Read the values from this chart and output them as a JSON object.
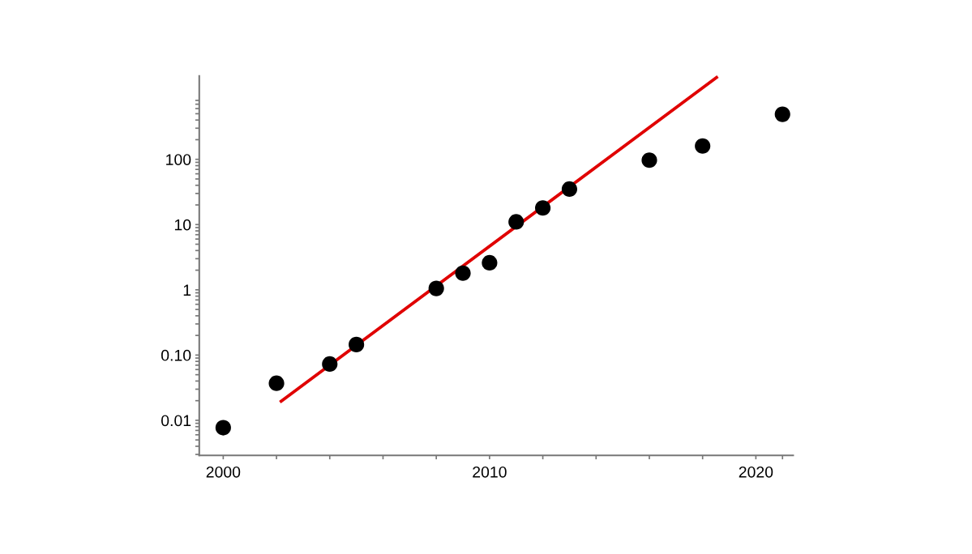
{
  "chart_data": {
    "type": "scatter",
    "log": "y",
    "grid": false,
    "xlim": [
      1999.1,
      2021.4
    ],
    "ylim": [
      0.0029,
      1900
    ],
    "xticks": [
      2000,
      {
        "value": 2002,
        "label": null
      },
      {
        "value": 2004,
        "label": null
      },
      {
        "value": 2006,
        "label": null
      },
      {
        "value": 2008,
        "label": null
      },
      2010,
      {
        "value": 2012,
        "label": null
      },
      {
        "value": 2014,
        "label": null
      },
      {
        "value": 2016,
        "label": null
      },
      {
        "value": 2018,
        "label": null
      },
      2020,
      {
        "value": 2021,
        "label": null
      }
    ],
    "yticks": [
      {
        "value": 0.01,
        "label": "0.01"
      },
      {
        "value": 0.1,
        "label": "0.10"
      },
      1,
      10,
      100,
      {
        "value": 0.003,
        "label": null
      },
      {
        "value": 0.004,
        "label": null
      },
      {
        "value": 0.005,
        "label": null
      },
      {
        "value": 0.006,
        "label": null
      },
      {
        "value": 0.007,
        "label": null
      },
      {
        "value": 0.008,
        "label": null
      },
      {
        "value": 0.009,
        "label": null
      },
      {
        "value": 0.02,
        "label": null
      },
      {
        "value": 0.03,
        "label": null
      },
      {
        "value": 0.04,
        "label": null
      },
      {
        "value": 0.05,
        "label": null
      },
      {
        "value": 0.06,
        "label": null
      },
      {
        "value": 0.07,
        "label": null
      },
      {
        "value": 0.08,
        "label": null
      },
      {
        "value": 0.09,
        "label": null
      },
      {
        "value": 0.2,
        "label": null
      },
      {
        "value": 0.3,
        "label": null
      },
      {
        "value": 0.4,
        "label": null
      },
      {
        "value": 0.5,
        "label": null
      },
      {
        "value": 0.6,
        "label": null
      },
      {
        "value": 0.7,
        "label": null
      },
      {
        "value": 0.8,
        "label": null
      },
      {
        "value": 0.9,
        "label": null
      },
      {
        "value": 2,
        "label": null
      },
      {
        "value": 3,
        "label": null
      },
      {
        "value": 4,
        "label": null
      },
      {
        "value": 5,
        "label": null
      },
      {
        "value": 6,
        "label": null
      },
      {
        "value": 7,
        "label": null
      },
      {
        "value": 8,
        "label": null
      },
      {
        "value": 9,
        "label": null
      },
      {
        "value": 20,
        "label": null
      },
      {
        "value": 30,
        "label": null
      },
      {
        "value": 40,
        "label": null
      },
      {
        "value": 50,
        "label": null
      },
      {
        "value": 60,
        "label": null
      },
      {
        "value": 70,
        "label": null
      },
      {
        "value": 80,
        "label": null
      },
      {
        "value": 90,
        "label": null
      },
      {
        "value": 200,
        "label": null
      },
      {
        "value": 300,
        "label": null
      },
      {
        "value": 400,
        "label": null
      },
      {
        "value": 500,
        "label": null
      },
      {
        "value": 600,
        "label": null
      },
      {
        "value": 700,
        "label": null
      },
      {
        "value": 800,
        "label": null
      }
    ],
    "series": [
      {
        "marker": "circle",
        "color": "#000000",
        "x": [
          2000,
          2002,
          2004,
          2005,
          2008,
          2009,
          2010,
          2011,
          2012,
          2013,
          2016,
          2018,
          2021
        ],
        "values": [
          0.0077,
          0.037,
          0.073,
          0.145,
          1.05,
          1.8,
          2.6,
          11,
          18,
          35,
          97,
          160,
          490
        ]
      },
      {
        "type": "line",
        "marker": "none",
        "line_style": "solid",
        "color": "#e00000",
        "x": [
          2002.13,
          2018.57
        ],
        "values": [
          0.019,
          1860
        ]
      }
    ]
  }
}
